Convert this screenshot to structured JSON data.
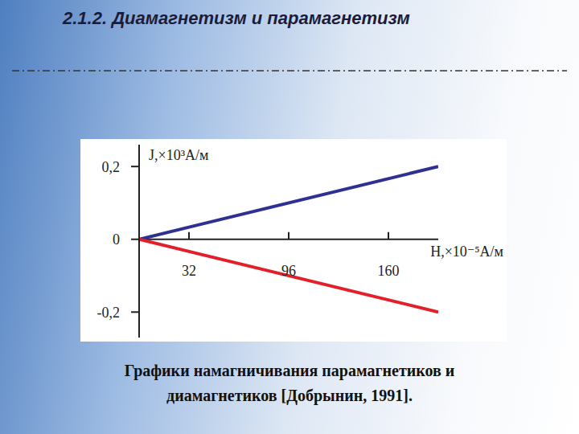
{
  "chart_data": {
    "type": "line",
    "title": "2.1.2. Диамагнетизм и парамагнетизм",
    "caption": "Графики намагничивания парамагнетиков и диамагнетиков [Добрынин, 1991].",
    "x_label": "H,×10⁻⁵A/м",
    "y_label": "J,×10³A/м",
    "x": [
      0,
      192
    ],
    "series": [
      {
        "color": "#2e3192",
        "values": [
          0,
          0.2
        ]
      },
      {
        "color": "#e3202a",
        "values": [
          0,
          -0.2
        ]
      }
    ],
    "xlim": [
      0,
      192
    ],
    "xticks": [
      32,
      96,
      160
    ],
    "ylim": [
      -0.27,
      0.26
    ],
    "yticks": [
      {
        "value": 0.2,
        "label": "0,2"
      },
      0,
      {
        "value": -0.2,
        "label": "-0,2"
      }
    ]
  }
}
